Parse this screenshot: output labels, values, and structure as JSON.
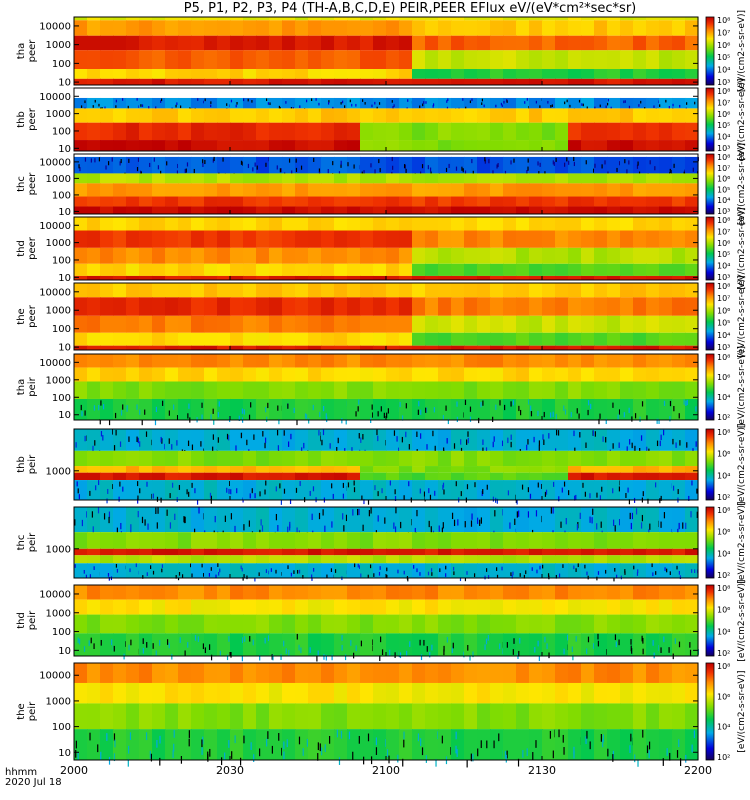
{
  "title": "P5, P1, P2, P3, P4 (TH-A,B,C,D,E) PEIR,PEER EFlux eV/(eV*cm²*sec*sr)",
  "time_axis": {
    "label_line1": "hhmm",
    "label_line2": "2020 Jul 18",
    "ticks": [
      "2000",
      "2030",
      "2100",
      "2130",
      "2200"
    ]
  },
  "colorbar_label": "[eV/(cm2-s-sr-eV)]",
  "colorbar_ticks_wide": [
    "10⁸",
    "10⁷",
    "10⁶",
    "10⁵",
    "10⁴",
    "10³"
  ],
  "colorbar_ticks_short": [
    "10⁸",
    "10⁶",
    "10⁴",
    "10²"
  ],
  "chart_data": {
    "type": "heatmap",
    "x_range": [
      "20:00",
      "22:00"
    ],
    "y_scale": "log",
    "colorscale": "rainbow (blue=low, red=high)",
    "panels": [
      {
        "name": "tha peer",
        "ylabel1": "tha",
        "ylabel2": "peer",
        "ylim": [
          7,
          30000
        ],
        "yticks": [
          "10000",
          "1000",
          "100",
          "10"
        ],
        "bands": [
          {
            "y": [
              20000,
              30000
            ],
            "level": [
              0.65,
              0.65
            ]
          },
          {
            "y": [
              3000,
              20000
            ],
            "level": [
              0.78,
              0.72
            ]
          },
          {
            "y": [
              500,
              3000
            ],
            "level": [
              0.95,
              0.85
            ]
          },
          {
            "y": [
              50,
              500
            ],
            "level": [
              0.85,
              0.62
            ]
          },
          {
            "y": [
              15,
              50
            ],
            "level": [
              0.7,
              0.45
            ]
          },
          {
            "y": [
              7,
              15
            ],
            "level": [
              0.95,
              0.95
            ]
          }
        ]
      },
      {
        "name": "thb peer",
        "ylabel1": "thb",
        "ylabel2": "peer",
        "ylim": [
          7,
          30000
        ],
        "yticks": [
          "10000",
          "1000",
          "100",
          "10"
        ],
        "bands": [
          {
            "y": [
              2000,
              8000
            ],
            "level": [
              0.25,
              0.25
            ],
            "noise": true
          },
          {
            "y": [
              300,
              2000
            ],
            "level": [
              0.72,
              0.72
            ]
          },
          {
            "y": [
              30,
              300
            ],
            "level": [
              0.92,
              0.55
            ]
          },
          {
            "y": [
              7,
              30
            ],
            "level": [
              0.98,
              0.55
            ]
          }
        ]
      },
      {
        "name": "thc peer",
        "ylabel1": "thc",
        "ylabel2": "peer",
        "ylim": [
          7,
          30000
        ],
        "yticks": [
          "10000",
          "1000",
          "100",
          "10"
        ],
        "bands": [
          {
            "y": [
              2000,
              20000
            ],
            "level": [
              0.2,
              0.2
            ],
            "noise": true
          },
          {
            "y": [
              500,
              2000
            ],
            "level": [
              0.6,
              0.6
            ]
          },
          {
            "y": [
              80,
              500
            ],
            "level": [
              0.78,
              0.78
            ]
          },
          {
            "y": [
              20,
              80
            ],
            "level": [
              0.9,
              0.9
            ]
          },
          {
            "y": [
              7,
              20
            ],
            "level": [
              0.98,
              0.98
            ]
          }
        ]
      },
      {
        "name": "thd peer",
        "ylabel1": "thd",
        "ylabel2": "peer",
        "ylim": [
          7,
          30000
        ],
        "yticks": [
          "10000",
          "1000",
          "100",
          "10"
        ],
        "bands": [
          {
            "y": [
              5000,
              30000
            ],
            "level": [
              0.7,
              0.7
            ]
          },
          {
            "y": [
              500,
              5000
            ],
            "level": [
              0.9,
              0.8
            ]
          },
          {
            "y": [
              60,
              500
            ],
            "level": [
              0.8,
              0.6
            ]
          },
          {
            "y": [
              12,
              60
            ],
            "level": [
              0.7,
              0.5
            ]
          },
          {
            "y": [
              7,
              12
            ],
            "level": [
              0.95,
              0.95
            ]
          }
        ]
      },
      {
        "name": "the peer",
        "ylabel1": "the",
        "ylabel2": "peer",
        "ylim": [
          7,
          30000
        ],
        "yticks": [
          "10000",
          "1000",
          "100",
          "10"
        ],
        "bands": [
          {
            "y": [
              5000,
              30000
            ],
            "level": [
              0.72,
              0.72
            ]
          },
          {
            "y": [
              500,
              5000
            ],
            "level": [
              0.92,
              0.82
            ]
          },
          {
            "y": [
              60,
              500
            ],
            "level": [
              0.82,
              0.62
            ]
          },
          {
            "y": [
              12,
              60
            ],
            "level": [
              0.7,
              0.5
            ]
          },
          {
            "y": [
              7,
              12
            ],
            "level": [
              0.95,
              0.95
            ]
          }
        ]
      },
      {
        "name": "tha peir",
        "ylabel1": "tha",
        "ylabel2": "peir",
        "ylim": [
          5,
          30000
        ],
        "yticks": [
          "10000",
          "1000",
          "100",
          "10"
        ],
        "bands": [
          {
            "y": [
              5000,
              30000
            ],
            "level": [
              0.8,
              0.8
            ]
          },
          {
            "y": [
              800,
              5000
            ],
            "level": [
              0.7,
              0.7
            ]
          },
          {
            "y": [
              80,
              800
            ],
            "level": [
              0.55,
              0.55
            ]
          },
          {
            "y": [
              5,
              80
            ],
            "level": [
              0.45,
              0.45
            ],
            "noise": true
          }
        ]
      },
      {
        "name": "thb peir",
        "ylabel1": "thb",
        "ylabel2": "peir",
        "ylim": [
          200,
          10000
        ],
        "yticks": [
          "1000"
        ],
        "bands": [
          {
            "y": [
              3000,
              10000
            ],
            "level": [
              0.3,
              0.3
            ],
            "noise": true
          },
          {
            "y": [
              1300,
              3000
            ],
            "level": [
              0.55,
              0.55
            ]
          },
          {
            "y": [
              900,
              1300
            ],
            "level": [
              0.75,
              0.55
            ]
          },
          {
            "y": [
              600,
              900
            ],
            "level": [
              0.95,
              0.5
            ]
          },
          {
            "y": [
              200,
              600
            ],
            "level": [
              0.3,
              0.3
            ],
            "noise": true
          }
        ]
      },
      {
        "name": "thc peir",
        "ylabel1": "thc",
        "ylabel2": "peir",
        "ylim": [
          200,
          10000
        ],
        "yticks": [
          "1000"
        ],
        "bands": [
          {
            "y": [
              2500,
              10000
            ],
            "level": [
              0.3,
              0.3
            ],
            "noise": true
          },
          {
            "y": [
              1000,
              2500
            ],
            "level": [
              0.55,
              0.55
            ]
          },
          {
            "y": [
              700,
              1000
            ],
            "level": [
              0.95,
              0.95
            ]
          },
          {
            "y": [
              450,
              700
            ],
            "level": [
              0.6,
              0.6
            ]
          },
          {
            "y": [
              200,
              450
            ],
            "level": [
              0.3,
              0.3
            ],
            "noise": true
          }
        ]
      },
      {
        "name": "thd peir",
        "ylabel1": "thd",
        "ylabel2": "peir",
        "ylim": [
          5,
          30000
        ],
        "yticks": [
          "10000",
          "1000",
          "100",
          "10"
        ],
        "bands": [
          {
            "y": [
              5000,
              30000
            ],
            "level": [
              0.8,
              0.8
            ]
          },
          {
            "y": [
              800,
              5000
            ],
            "level": [
              0.68,
              0.68
            ]
          },
          {
            "y": [
              80,
              800
            ],
            "level": [
              0.55,
              0.55
            ]
          },
          {
            "y": [
              5,
              80
            ],
            "level": [
              0.45,
              0.45
            ],
            "noise": true
          }
        ]
      },
      {
        "name": "the peir",
        "ylabel1": "the",
        "ylabel2": "peir",
        "ylim": [
          5,
          30000
        ],
        "yticks": [
          "10000",
          "1000",
          "100",
          "10"
        ],
        "bands": [
          {
            "y": [
              5000,
              30000
            ],
            "level": [
              0.8,
              0.8
            ]
          },
          {
            "y": [
              800,
              5000
            ],
            "level": [
              0.68,
              0.68
            ]
          },
          {
            "y": [
              80,
              800
            ],
            "level": [
              0.55,
              0.55
            ]
          },
          {
            "y": [
              5,
              80
            ],
            "level": [
              0.45,
              0.45
            ],
            "noise": true
          }
        ]
      }
    ]
  }
}
